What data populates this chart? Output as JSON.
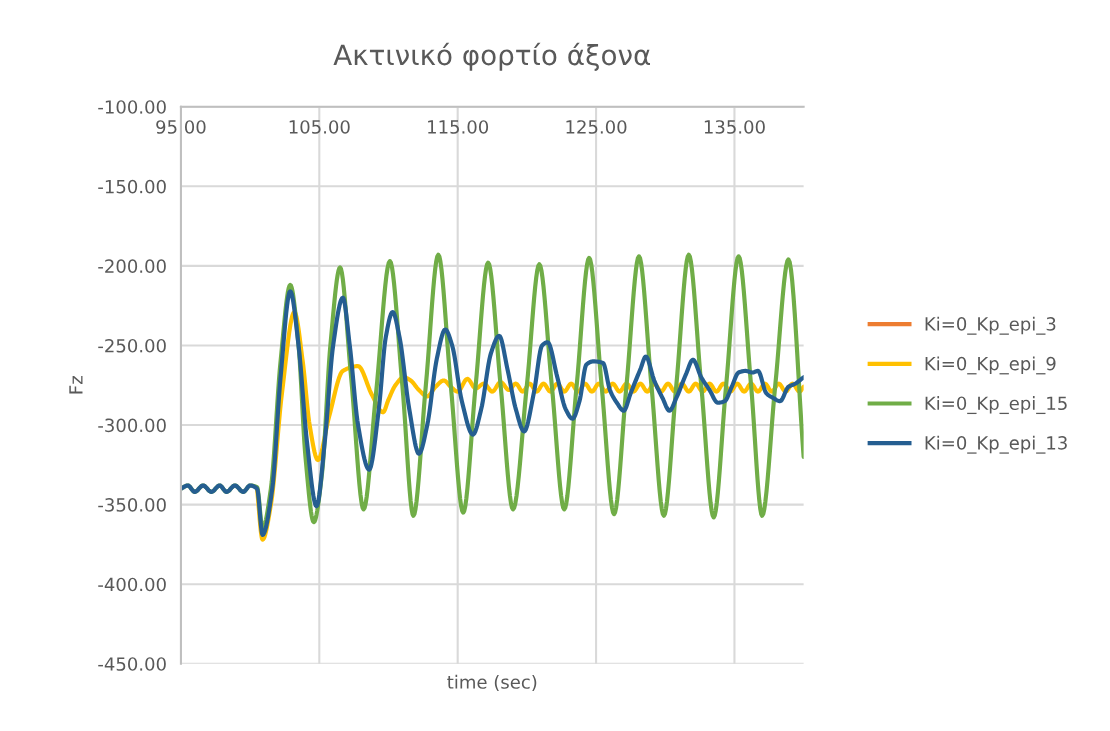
{
  "chart_data": {
    "type": "line",
    "title": "Ακτινικό φορτίο άξονα",
    "xlabel": "time (sec)",
    "ylabel": "Fz",
    "xlim": [
      95,
      140
    ],
    "ylim": [
      -450,
      -100
    ],
    "xticks": [
      {
        "value": 95,
        "label": "95.00"
      },
      {
        "value": 105,
        "label": "105.00"
      },
      {
        "value": 115,
        "label": "115.00"
      },
      {
        "value": 125,
        "label": "125.00"
      },
      {
        "value": 135,
        "label": "135.00"
      }
    ],
    "yticks": [
      {
        "value": -100,
        "label": "-100.00"
      },
      {
        "value": -150,
        "label": "-150.00"
      },
      {
        "value": -200,
        "label": "-200.00"
      },
      {
        "value": -250,
        "label": "-250.00"
      },
      {
        "value": -300,
        "label": "-300.00"
      },
      {
        "value": -350,
        "label": "-350.00"
      },
      {
        "value": -400,
        "label": "-400.00"
      },
      {
        "value": -450,
        "label": "-450.00"
      }
    ],
    "grid": true,
    "legend": "right",
    "marker": "none",
    "line_style": "solid",
    "series": [
      {
        "name": "Ki=0_Kp_epi_3",
        "color": "#ed7d31"
      },
      {
        "name": "Ki=0_Kp_epi_9",
        "color": "#ffc000",
        "x": [
          100.5,
          100.9,
          101.5,
          102.3,
          103.2,
          103.8,
          104.3,
          104.9,
          105.7,
          106.7,
          107.8,
          108.8,
          109.6,
          110,
          110.5,
          111.1,
          111.6,
          112.2,
          112.8,
          113.4,
          114,
          114.5,
          115,
          115.7,
          116.3,
          116.9,
          117.5,
          118.1,
          118.7,
          119.2,
          119.7,
          120.2,
          120.7,
          121.2,
          121.7,
          122.2,
          122.7,
          123.2,
          123.7,
          124.2,
          124.7,
          125.2,
          125.7,
          126.2,
          126.7,
          127.2,
          127.7,
          128.2,
          128.7,
          129.2,
          129.7,
          130.2,
          130.7,
          131.2,
          131.7,
          132.2,
          132.7,
          133.2,
          133.7,
          134.2,
          134.7,
          135.2,
          135.7,
          136.2,
          136.7,
          137.2,
          137.7,
          138.2,
          138.7,
          139.2,
          139.7,
          140
        ],
        "values": [
          -340,
          -372,
          -350,
          -280,
          -229,
          -260,
          -300,
          -322,
          -295,
          -266,
          -263,
          -281,
          -292,
          -284,
          -275,
          -270,
          -272,
          -278,
          -282,
          -276,
          -272,
          -276,
          -279,
          -271,
          -277,
          -274,
          -279,
          -273,
          -278,
          -274,
          -279,
          -274,
          -279,
          -274,
          -279,
          -274,
          -279,
          -274,
          -279,
          -274,
          -279,
          -274,
          -279,
          -274,
          -279,
          -274,
          -279,
          -274,
          -279,
          -274,
          -279,
          -274,
          -279,
          -274,
          -279,
          -274,
          -279,
          -274,
          -279,
          -274,
          -279,
          -274,
          -279,
          -274,
          -279,
          -274,
          -279,
          -274,
          -279,
          -274,
          -279,
          -276
        ]
      },
      {
        "name": "Ki=0_Kp_epi_15",
        "color": "#70ad47",
        "x": [
          95,
          95.5,
          96,
          96.6,
          97.2,
          97.8,
          98.3,
          98.9,
          99.5,
          100,
          100.5,
          100.9,
          101.5,
          102.2,
          102.9,
          103.5,
          104,
          104.6,
          105.2,
          105.8,
          106.5,
          107.3,
          108.2,
          109.1,
          110.1,
          111,
          111.8,
          112.7,
          113.6,
          114.5,
          115.4,
          116.3,
          117.2,
          118.1,
          119,
          120,
          120.9,
          121.8,
          122.7,
          123.6,
          124.5,
          125.4,
          126.3,
          127.2,
          128.1,
          129,
          129.9,
          130.8,
          131.7,
          132.6,
          133.5,
          134.4,
          135.3,
          136.2,
          137,
          137.95,
          138.9,
          140
        ],
        "values": [
          -340,
          -338,
          -342,
          -338,
          -342,
          -338,
          -342,
          -338,
          -342,
          -338,
          -339,
          -365,
          -340,
          -260,
          -212,
          -250,
          -320,
          -361,
          -330,
          -250,
          -201,
          -270,
          -353,
          -280,
          -197,
          -275,
          -357,
          -275,
          -193,
          -275,
          -355,
          -275,
          -198,
          -275,
          -353,
          -275,
          -199,
          -275,
          -353,
          -275,
          -195,
          -275,
          -356,
          -275,
          -194,
          -275,
          -357,
          -275,
          -193,
          -275,
          -358,
          -275,
          -194,
          -275,
          -357,
          -275,
          -196,
          -320
        ]
      },
      {
        "name": "Ki=0_Kp_epi_13",
        "color": "#255e91",
        "x": [
          95,
          95.5,
          96,
          96.6,
          97.2,
          97.8,
          98.3,
          98.9,
          99.5,
          100,
          100.5,
          100.9,
          101.6,
          102.2,
          102.9,
          103.5,
          104.1,
          104.8,
          105.4,
          106,
          106.7,
          107.2,
          107.8,
          108.6,
          109.3,
          109.8,
          110.3,
          110.8,
          111.5,
          112.2,
          112.8,
          113.5,
          114.1,
          114.6,
          115.3,
          116.1,
          116.7,
          117.4,
          118,
          118.6,
          119.2,
          119.8,
          120.5,
          121.1,
          121.5,
          122.2,
          122.8,
          123.3,
          123.8,
          124.3,
          124.8,
          125.5,
          126,
          126.5,
          127,
          127.5,
          128.2,
          128.6,
          129.2,
          129.8,
          130.3,
          130.8,
          131.5,
          132,
          132.6,
          133.2,
          133.8,
          134.3,
          134.8,
          135.3,
          135.8,
          136.3,
          136.7,
          137.3,
          137.8,
          138.3,
          138.9,
          139.4,
          140
        ],
        "values": [
          -340,
          -338,
          -342,
          -338,
          -342,
          -338,
          -342,
          -338,
          -342,
          -338,
          -340,
          -369,
          -340,
          -270,
          -216,
          -250,
          -310,
          -351,
          -310,
          -250,
          -220,
          -250,
          -300,
          -328,
          -290,
          -245,
          -229,
          -245,
          -290,
          -318,
          -300,
          -258,
          -240,
          -250,
          -285,
          -306,
          -290,
          -255,
          -244,
          -265,
          -290,
          -304,
          -280,
          -250,
          -248,
          -270,
          -290,
          -296,
          -285,
          -262,
          -260,
          -261,
          -278,
          -286,
          -291,
          -280,
          -265,
          -257,
          -272,
          -283,
          -291,
          -283,
          -268,
          -259,
          -270,
          -278,
          -286,
          -285,
          -276,
          -267,
          -266,
          -267,
          -266,
          -280,
          -283,
          -285,
          -276,
          -274,
          -270
        ]
      }
    ]
  }
}
